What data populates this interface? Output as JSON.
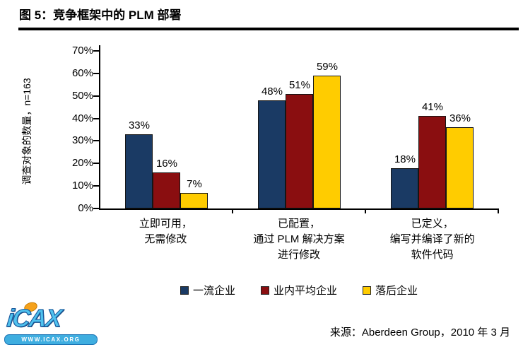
{
  "title": "图 5：竞争框架中的 PLM 部署",
  "source": "来源：Aberdeen Group，2010 年 3 月",
  "logo": {
    "brand": "iCAX",
    "site": "WWW.ICAX.ORG"
  },
  "chart_data": {
    "type": "bar",
    "title": "图 5：竞争框架中的 PLM 部署",
    "ylabel": "调查对象的数量，n=163",
    "xlabel": "",
    "ylim": [
      0,
      70
    ],
    "ytick_labels": [
      "70%",
      "60%",
      "50%",
      "40%",
      "30%",
      "20%",
      "10%",
      "0%"
    ],
    "grid": false,
    "legend_position": "bottom",
    "categories": [
      "立即可用，无需修改",
      "已配置，通过 PLM 解决方案进行修改",
      "已定义，编写并编译了新的软件代码"
    ],
    "category_lines": [
      [
        "立即可用，",
        "无需修改"
      ],
      [
        "已配置，",
        "通过 PLM 解决方案",
        "进行修改"
      ],
      [
        "已定义，",
        "编写并编译了新的",
        "软件代码"
      ]
    ],
    "series": [
      {
        "name": "一流企业",
        "color": "#1A3A64",
        "values": [
          33,
          48,
          18
        ],
        "value_labels": [
          "33%",
          "48%",
          "18%"
        ]
      },
      {
        "name": "业内平均企业",
        "color": "#8A0E10",
        "values": [
          16,
          51,
          41
        ],
        "value_labels": [
          "16%",
          "51%",
          "41%"
        ]
      },
      {
        "name": "落后企业",
        "color": "#FFCC00",
        "values": [
          7,
          59,
          36
        ],
        "value_labels": [
          "7%",
          "59%",
          "36%"
        ]
      }
    ]
  }
}
